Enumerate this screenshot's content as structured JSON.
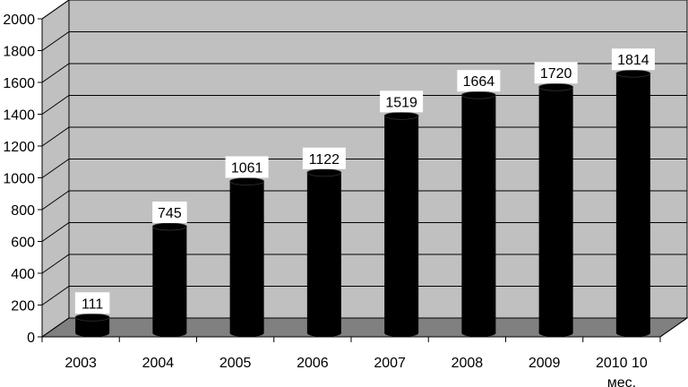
{
  "chart_data": {
    "type": "bar",
    "categories": [
      "2003",
      "2004",
      "2005",
      "2006",
      "2007",
      "2008",
      "2009",
      "2010 10 мес."
    ],
    "category_lines": [
      [
        "2003"
      ],
      [
        "2004"
      ],
      [
        "2005"
      ],
      [
        "2006"
      ],
      [
        "2007"
      ],
      [
        "2008"
      ],
      [
        "2009"
      ],
      [
        "2010 10",
        "мес."
      ]
    ],
    "values": [
      111,
      745,
      1061,
      1122,
      1519,
      1664,
      1720,
      1814
    ],
    "data_labels": [
      "111",
      "745",
      "1061",
      "1122",
      "1519",
      "1664",
      "1720",
      "1814"
    ],
    "title": "",
    "xlabel": "",
    "ylabel": "",
    "ylim": [
      0,
      2000
    ],
    "yticks": [
      0,
      200,
      400,
      600,
      800,
      1000,
      1200,
      1400,
      1600,
      1800,
      2000
    ],
    "grid": true,
    "legend": "none",
    "style": "3d-cylinder",
    "colors": {
      "bar": "#000000",
      "wall": "#c0c0c0",
      "floor": "#808080",
      "grid": "#000000",
      "label_box": "#ffffff"
    }
  }
}
